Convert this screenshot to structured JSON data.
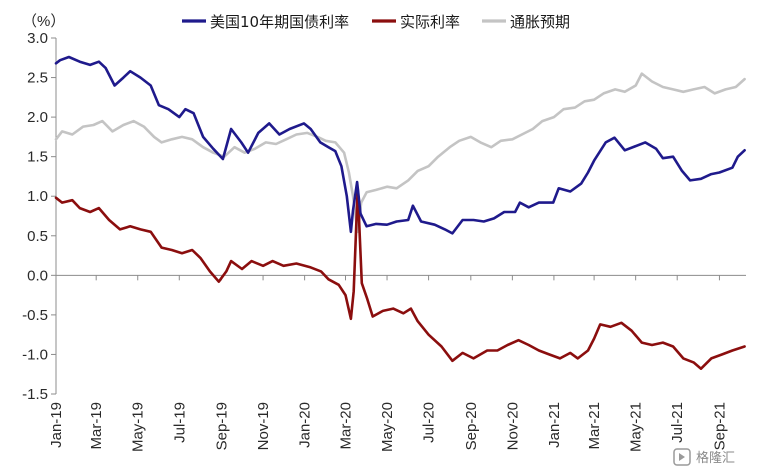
{
  "chart_data": {
    "type": "line",
    "unit_label": "（%）",
    "ylim": [
      -1.5,
      3.0
    ],
    "y_ticks": [
      "3.0",
      "2.5",
      "2.0",
      "1.5",
      "1.0",
      "0.5",
      "0.0",
      "-0.5",
      "-1.0",
      "-1.5"
    ],
    "y_tick_values": [
      3.0,
      2.5,
      2.0,
      1.5,
      1.0,
      0.5,
      0.0,
      -0.5,
      -1.0,
      -1.5
    ],
    "x_range": [
      "2019-01-01",
      "2021-10-10"
    ],
    "x_ticks": [
      "Jan-19",
      "Mar-19",
      "May-19",
      "Jul-19",
      "Sep-19",
      "Nov-19",
      "Jan-20",
      "Mar-20",
      "May-20",
      "Jul-20",
      "Sep-20",
      "Nov-20",
      "Jan-21",
      "Mar-21",
      "May-21",
      "Jul-21",
      "Sep-21"
    ],
    "x_tick_dates": [
      "2019-01-01",
      "2019-03-01",
      "2019-05-01",
      "2019-07-01",
      "2019-09-01",
      "2019-11-01",
      "2020-01-01",
      "2020-03-01",
      "2020-05-01",
      "2020-07-01",
      "2020-09-01",
      "2020-11-01",
      "2021-01-01",
      "2021-03-01",
      "2021-05-01",
      "2021-07-01",
      "2021-09-01"
    ],
    "legend_placement": "top",
    "grid": false,
    "series": [
      {
        "name": "美国10年期国债利率",
        "color": "#1f1a8c",
        "points": [
          [
            "2019-01-01",
            2.68
          ],
          [
            "2019-01-07",
            2.72
          ],
          [
            "2019-01-20",
            2.76
          ],
          [
            "2019-02-05",
            2.7
          ],
          [
            "2019-02-20",
            2.66
          ],
          [
            "2019-03-05",
            2.7
          ],
          [
            "2019-03-15",
            2.62
          ],
          [
            "2019-03-28",
            2.4
          ],
          [
            "2019-04-10",
            2.5
          ],
          [
            "2019-04-20",
            2.58
          ],
          [
            "2019-05-05",
            2.5
          ],
          [
            "2019-05-20",
            2.4
          ],
          [
            "2019-06-01",
            2.15
          ],
          [
            "2019-06-15",
            2.1
          ],
          [
            "2019-07-01",
            2.0
          ],
          [
            "2019-07-10",
            2.1
          ],
          [
            "2019-07-22",
            2.05
          ],
          [
            "2019-08-05",
            1.75
          ],
          [
            "2019-08-20",
            1.6
          ],
          [
            "2019-09-03",
            1.47
          ],
          [
            "2019-09-15",
            1.85
          ],
          [
            "2019-09-30",
            1.68
          ],
          [
            "2019-10-10",
            1.55
          ],
          [
            "2019-10-25",
            1.8
          ],
          [
            "2019-11-10",
            1.92
          ],
          [
            "2019-11-25",
            1.78
          ],
          [
            "2019-12-10",
            1.85
          ],
          [
            "2019-12-31",
            1.92
          ],
          [
            "2020-01-10",
            1.85
          ],
          [
            "2020-01-24",
            1.68
          ],
          [
            "2020-02-05",
            1.62
          ],
          [
            "2020-02-15",
            1.57
          ],
          [
            "2020-02-24",
            1.38
          ],
          [
            "2020-03-03",
            1.0
          ],
          [
            "2020-03-09",
            0.55
          ],
          [
            "2020-03-12",
            0.82
          ],
          [
            "2020-03-18",
            1.18
          ],
          [
            "2020-03-23",
            0.78
          ],
          [
            "2020-04-01",
            0.62
          ],
          [
            "2020-04-15",
            0.65
          ],
          [
            "2020-05-01",
            0.64
          ],
          [
            "2020-05-15",
            0.68
          ],
          [
            "2020-06-01",
            0.7
          ],
          [
            "2020-06-08",
            0.88
          ],
          [
            "2020-06-20",
            0.68
          ],
          [
            "2020-07-10",
            0.64
          ],
          [
            "2020-07-25",
            0.58
          ],
          [
            "2020-08-05",
            0.53
          ],
          [
            "2020-08-20",
            0.7
          ],
          [
            "2020-09-05",
            0.7
          ],
          [
            "2020-09-20",
            0.68
          ],
          [
            "2020-10-05",
            0.72
          ],
          [
            "2020-10-20",
            0.8
          ],
          [
            "2020-11-05",
            0.8
          ],
          [
            "2020-11-12",
            0.92
          ],
          [
            "2020-11-25",
            0.86
          ],
          [
            "2020-12-10",
            0.92
          ],
          [
            "2020-12-31",
            0.92
          ],
          [
            "2021-01-08",
            1.1
          ],
          [
            "2021-01-25",
            1.06
          ],
          [
            "2021-02-10",
            1.16
          ],
          [
            "2021-02-20",
            1.3
          ],
          [
            "2021-03-01",
            1.45
          ],
          [
            "2021-03-18",
            1.68
          ],
          [
            "2021-03-31",
            1.74
          ],
          [
            "2021-04-15",
            1.58
          ],
          [
            "2021-04-30",
            1.63
          ],
          [
            "2021-05-15",
            1.68
          ],
          [
            "2021-05-31",
            1.6
          ],
          [
            "2021-06-10",
            1.48
          ],
          [
            "2021-06-25",
            1.5
          ],
          [
            "2021-07-08",
            1.32
          ],
          [
            "2021-07-20",
            1.2
          ],
          [
            "2021-08-05",
            1.22
          ],
          [
            "2021-08-20",
            1.28
          ],
          [
            "2021-09-01",
            1.3
          ],
          [
            "2021-09-20",
            1.36
          ],
          [
            "2021-09-28",
            1.5
          ],
          [
            "2021-10-08",
            1.58
          ]
        ]
      },
      {
        "name": "实际利率",
        "color": "#8b0e0e",
        "points": [
          [
            "2019-01-01",
            0.98
          ],
          [
            "2019-01-10",
            0.92
          ],
          [
            "2019-01-25",
            0.95
          ],
          [
            "2019-02-05",
            0.85
          ],
          [
            "2019-02-20",
            0.8
          ],
          [
            "2019-03-05",
            0.85
          ],
          [
            "2019-03-20",
            0.7
          ],
          [
            "2019-04-05",
            0.58
          ],
          [
            "2019-04-20",
            0.62
          ],
          [
            "2019-05-05",
            0.58
          ],
          [
            "2019-05-20",
            0.55
          ],
          [
            "2019-06-05",
            0.35
          ],
          [
            "2019-06-20",
            0.32
          ],
          [
            "2019-07-05",
            0.28
          ],
          [
            "2019-07-20",
            0.32
          ],
          [
            "2019-08-01",
            0.22
          ],
          [
            "2019-08-15",
            0.05
          ],
          [
            "2019-08-28",
            -0.08
          ],
          [
            "2019-09-08",
            0.05
          ],
          [
            "2019-09-15",
            0.18
          ],
          [
            "2019-10-01",
            0.08
          ],
          [
            "2019-10-15",
            0.18
          ],
          [
            "2019-11-01",
            0.12
          ],
          [
            "2019-11-15",
            0.18
          ],
          [
            "2019-12-01",
            0.12
          ],
          [
            "2019-12-20",
            0.15
          ],
          [
            "2020-01-10",
            0.1
          ],
          [
            "2020-01-25",
            0.05
          ],
          [
            "2020-02-05",
            -0.05
          ],
          [
            "2020-02-20",
            -0.12
          ],
          [
            "2020-03-01",
            -0.25
          ],
          [
            "2020-03-09",
            -0.55
          ],
          [
            "2020-03-13",
            -0.2
          ],
          [
            "2020-03-19",
            1.1
          ],
          [
            "2020-03-25",
            -0.1
          ],
          [
            "2020-04-02",
            -0.3
          ],
          [
            "2020-04-10",
            -0.52
          ],
          [
            "2020-04-25",
            -0.45
          ],
          [
            "2020-05-10",
            -0.42
          ],
          [
            "2020-05-25",
            -0.48
          ],
          [
            "2020-06-05",
            -0.42
          ],
          [
            "2020-06-15",
            -0.58
          ],
          [
            "2020-07-01",
            -0.75
          ],
          [
            "2020-07-20",
            -0.9
          ],
          [
            "2020-08-05",
            -1.08
          ],
          [
            "2020-08-20",
            -0.98
          ],
          [
            "2020-09-05",
            -1.05
          ],
          [
            "2020-09-25",
            -0.95
          ],
          [
            "2020-10-10",
            -0.95
          ],
          [
            "2020-10-25",
            -0.88
          ],
          [
            "2020-11-10",
            -0.82
          ],
          [
            "2020-11-25",
            -0.88
          ],
          [
            "2020-12-10",
            -0.95
          ],
          [
            "2020-12-25",
            -1.0
          ],
          [
            "2021-01-10",
            -1.05
          ],
          [
            "2021-01-25",
            -0.98
          ],
          [
            "2021-02-05",
            -1.05
          ],
          [
            "2021-02-20",
            -0.95
          ],
          [
            "2021-03-01",
            -0.8
          ],
          [
            "2021-03-10",
            -0.62
          ],
          [
            "2021-03-25",
            -0.65
          ],
          [
            "2021-04-10",
            -0.6
          ],
          [
            "2021-04-25",
            -0.7
          ],
          [
            "2021-05-10",
            -0.85
          ],
          [
            "2021-05-25",
            -0.88
          ],
          [
            "2021-06-10",
            -0.85
          ],
          [
            "2021-06-25",
            -0.9
          ],
          [
            "2021-07-10",
            -1.05
          ],
          [
            "2021-07-25",
            -1.1
          ],
          [
            "2021-08-05",
            -1.18
          ],
          [
            "2021-08-20",
            -1.05
          ],
          [
            "2021-09-05",
            -1.0
          ],
          [
            "2021-09-20",
            -0.95
          ],
          [
            "2021-10-08",
            -0.9
          ]
        ]
      },
      {
        "name": "通胀预期",
        "color": "#c4c4c4",
        "points": [
          [
            "2019-01-01",
            1.72
          ],
          [
            "2019-01-10",
            1.82
          ],
          [
            "2019-01-25",
            1.78
          ],
          [
            "2019-02-10",
            1.88
          ],
          [
            "2019-02-25",
            1.9
          ],
          [
            "2019-03-10",
            1.95
          ],
          [
            "2019-03-25",
            1.82
          ],
          [
            "2019-04-10",
            1.9
          ],
          [
            "2019-04-25",
            1.95
          ],
          [
            "2019-05-10",
            1.88
          ],
          [
            "2019-05-25",
            1.75
          ],
          [
            "2019-06-05",
            1.68
          ],
          [
            "2019-06-20",
            1.72
          ],
          [
            "2019-07-05",
            1.75
          ],
          [
            "2019-07-20",
            1.72
          ],
          [
            "2019-08-05",
            1.62
          ],
          [
            "2019-08-20",
            1.55
          ],
          [
            "2019-09-05",
            1.5
          ],
          [
            "2019-09-20",
            1.62
          ],
          [
            "2019-10-05",
            1.55
          ],
          [
            "2019-10-20",
            1.6
          ],
          [
            "2019-11-05",
            1.68
          ],
          [
            "2019-11-20",
            1.66
          ],
          [
            "2019-12-05",
            1.72
          ],
          [
            "2019-12-20",
            1.78
          ],
          [
            "2020-01-05",
            1.8
          ],
          [
            "2020-01-20",
            1.75
          ],
          [
            "2020-02-01",
            1.7
          ],
          [
            "2020-02-15",
            1.68
          ],
          [
            "2020-02-28",
            1.55
          ],
          [
            "2020-03-06",
            1.3
          ],
          [
            "2020-03-12",
            1.0
          ],
          [
            "2020-03-19",
            0.55
          ],
          [
            "2020-03-24",
            0.92
          ],
          [
            "2020-04-01",
            1.05
          ],
          [
            "2020-04-15",
            1.08
          ],
          [
            "2020-05-01",
            1.12
          ],
          [
            "2020-05-15",
            1.1
          ],
          [
            "2020-06-01",
            1.2
          ],
          [
            "2020-06-15",
            1.32
          ],
          [
            "2020-07-01",
            1.38
          ],
          [
            "2020-07-15",
            1.5
          ],
          [
            "2020-08-01",
            1.62
          ],
          [
            "2020-08-15",
            1.7
          ],
          [
            "2020-09-01",
            1.75
          ],
          [
            "2020-09-15",
            1.68
          ],
          [
            "2020-10-01",
            1.62
          ],
          [
            "2020-10-15",
            1.7
          ],
          [
            "2020-11-01",
            1.72
          ],
          [
            "2020-11-15",
            1.78
          ],
          [
            "2020-12-01",
            1.85
          ],
          [
            "2020-12-15",
            1.95
          ],
          [
            "2021-01-01",
            2.0
          ],
          [
            "2021-01-15",
            2.1
          ],
          [
            "2021-02-01",
            2.12
          ],
          [
            "2021-02-15",
            2.2
          ],
          [
            "2021-03-01",
            2.22
          ],
          [
            "2021-03-15",
            2.3
          ],
          [
            "2021-04-01",
            2.35
          ],
          [
            "2021-04-15",
            2.32
          ],
          [
            "2021-05-01",
            2.4
          ],
          [
            "2021-05-10",
            2.55
          ],
          [
            "2021-05-25",
            2.45
          ],
          [
            "2021-06-10",
            2.38
          ],
          [
            "2021-06-25",
            2.35
          ],
          [
            "2021-07-10",
            2.32
          ],
          [
            "2021-07-25",
            2.35
          ],
          [
            "2021-08-10",
            2.38
          ],
          [
            "2021-08-25",
            2.3
          ],
          [
            "2021-09-10",
            2.35
          ],
          [
            "2021-09-25",
            2.38
          ],
          [
            "2021-10-08",
            2.48
          ]
        ]
      }
    ]
  },
  "watermark": {
    "text": "格隆汇",
    "icon": "gelonghui-logo-icon"
  }
}
